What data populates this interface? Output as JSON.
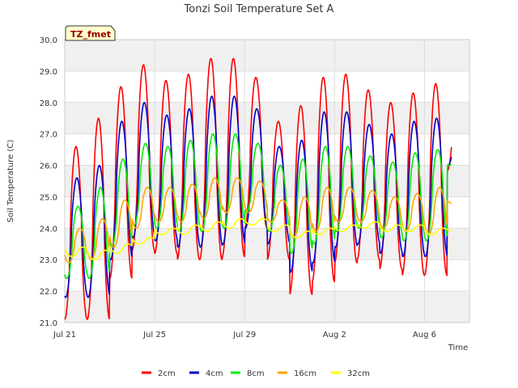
{
  "chart_data": {
    "type": "line",
    "title": "Tonzi Soil Temperature Set A",
    "xlabel": "Time",
    "ylabel": "Soil Temperature (C)",
    "site_label": "TZ_fmet",
    "ylim": [
      21.0,
      30.0
    ],
    "yticks": [
      "21.0",
      "22.0",
      "23.0",
      "24.0",
      "25.0",
      "26.0",
      "27.0",
      "28.0",
      "29.0",
      "30.0"
    ],
    "xlim_days": [
      0,
      18
    ],
    "xticks": [
      {
        "label": "Jul 21",
        "day": 0
      },
      {
        "label": "Jul 25",
        "day": 4
      },
      {
        "label": "Jul 29",
        "day": 8
      },
      {
        "label": "Aug 2",
        "day": 12
      },
      {
        "label": "Aug 6",
        "day": 16
      }
    ],
    "grid": true,
    "banded_background": true,
    "legend_position": "bottom",
    "sampling": "daily min/max (approx.), diurnal cycle",
    "series": [
      {
        "name": "2cm",
        "color": "#ff0000",
        "daily_min": [
          21.1,
          21.1,
          22.4,
          23.3,
          23.2,
          23.0,
          23.0,
          23.1,
          24.0,
          23.0,
          21.9,
          22.3,
          22.9,
          23.0,
          22.7,
          22.5,
          22.5,
          25.8
        ],
        "daily_max": [
          26.6,
          27.5,
          28.5,
          29.2,
          28.7,
          28.9,
          29.4,
          29.4,
          28.8,
          27.4,
          27.9,
          28.8,
          28.9,
          28.4,
          28.0,
          28.3,
          28.6,
          28.6
        ]
      },
      {
        "name": "4cm",
        "color": "#0000cc",
        "daily_min": [
          21.8,
          21.8,
          23.0,
          23.7,
          23.6,
          23.4,
          23.4,
          23.5,
          24.0,
          23.5,
          22.6,
          22.9,
          23.4,
          23.5,
          23.2,
          23.1,
          23.1,
          26.0
        ],
        "daily_max": [
          25.6,
          26.0,
          27.4,
          28.0,
          27.6,
          27.8,
          28.2,
          28.2,
          27.8,
          26.6,
          26.8,
          27.7,
          27.7,
          27.3,
          27.0,
          27.4,
          27.5,
          27.5
        ]
      },
      {
        "name": "8cm",
        "color": "#00ee00",
        "daily_min": [
          22.4,
          22.4,
          23.4,
          24.1,
          24.0,
          23.9,
          23.9,
          24.0,
          24.5,
          23.9,
          23.2,
          23.5,
          23.9,
          24.0,
          23.7,
          23.6,
          23.6,
          26.0
        ],
        "daily_max": [
          24.7,
          25.3,
          26.2,
          26.7,
          26.6,
          26.8,
          27.0,
          27.0,
          26.7,
          26.0,
          26.2,
          26.6,
          26.6,
          26.3,
          26.1,
          26.4,
          26.5,
          26.5
        ]
      },
      {
        "name": "16cm",
        "color": "#ffa500",
        "daily_min": [
          22.9,
          23.0,
          23.4,
          24.0,
          24.2,
          24.2,
          24.3,
          24.5,
          24.5,
          24.2,
          23.7,
          23.9,
          24.2,
          24.2,
          24.0,
          23.9,
          23.8,
          24.8
        ],
        "daily_max": [
          24.0,
          24.3,
          24.9,
          25.3,
          25.3,
          25.4,
          25.6,
          25.6,
          25.5,
          24.9,
          25.0,
          25.3,
          25.3,
          25.2,
          25.0,
          25.1,
          25.3,
          25.3
        ]
      },
      {
        "name": "32cm",
        "color": "#ffff00",
        "daily_min": [
          23.1,
          23.0,
          23.2,
          23.5,
          23.8,
          23.8,
          23.9,
          24.0,
          24.1,
          23.9,
          23.7,
          23.8,
          23.9,
          24.0,
          23.9,
          23.9,
          23.8,
          23.9
        ],
        "daily_max": [
          23.4,
          23.3,
          23.5,
          23.7,
          24.0,
          24.1,
          24.2,
          24.3,
          24.3,
          24.1,
          23.9,
          24.0,
          24.1,
          24.2,
          24.1,
          24.1,
          24.0,
          24.0
        ]
      }
    ]
  }
}
